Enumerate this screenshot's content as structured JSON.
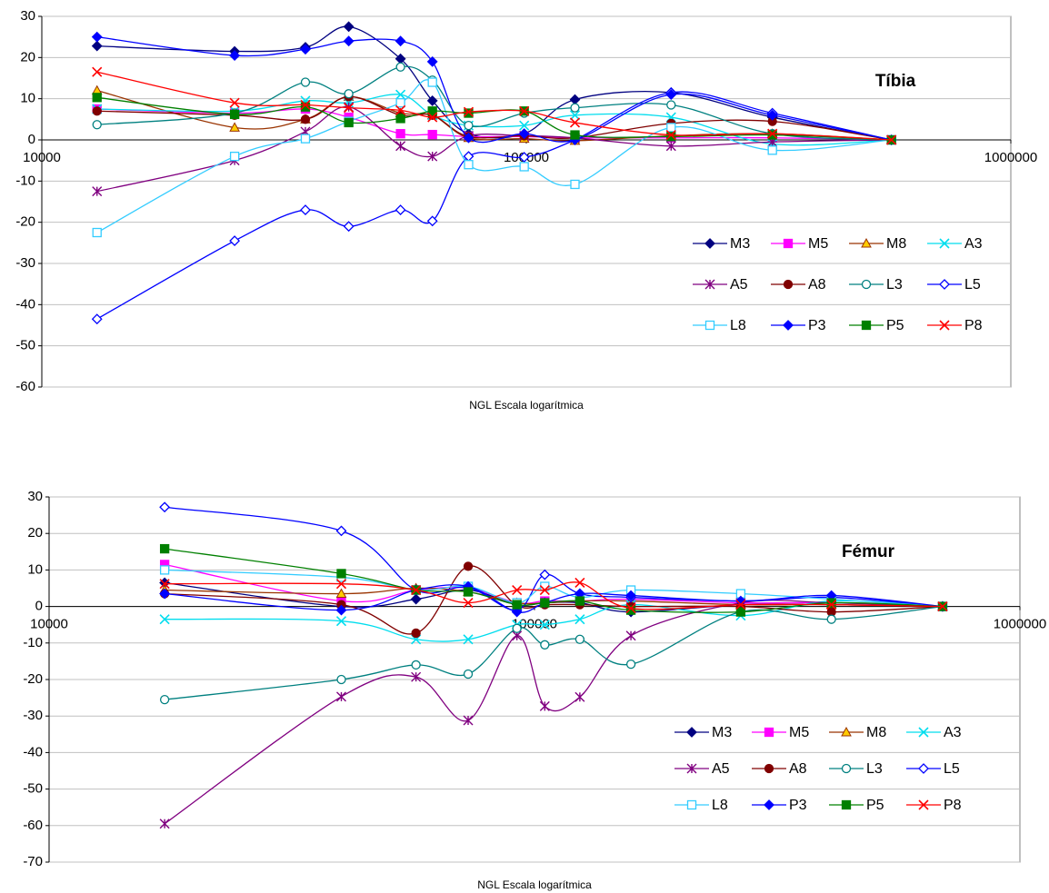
{
  "chart_data": [
    {
      "type": "line",
      "title": "Tíbia",
      "x_label": "NGL Escala logarítmica",
      "log_x": true,
      "grid": true,
      "legend": "lower right",
      "xlim": [
        10000,
        1000000
      ],
      "xticks": [
        10000,
        100000,
        1000000
      ],
      "ylim": [
        -60,
        30
      ],
      "yticks": [
        -60,
        -50,
        -40,
        -30,
        -20,
        -10,
        0,
        10,
        20,
        30
      ],
      "x": [
        13000,
        25000,
        35000,
        43000,
        55000,
        64000,
        76000,
        99000,
        126000,
        199000,
        322000,
        567000
      ],
      "series": [
        {
          "name": "M3",
          "color": "#000080",
          "marker": "diamond",
          "values": [
            22.8,
            21.5,
            22.5,
            27.5,
            19.7,
            9.5,
            1.5,
            1.5,
            9.8,
            11.5,
            5.5,
            0
          ]
        },
        {
          "name": "M5",
          "color": "#FF00FF",
          "marker": "square",
          "values": [
            7.5,
            6.5,
            7.5,
            5.5,
            1.5,
            1.3,
            0.8,
            0.8,
            0.5,
            0.5,
            0.5,
            0
          ]
        },
        {
          "name": "M8",
          "color": "#993300",
          "marker": "triangle",
          "values": [
            12,
            3,
            5,
            10.5,
            6.5,
            6,
            0.5,
            0.3,
            -0.2,
            1,
            1.5,
            0
          ]
        },
        {
          "name": "A3",
          "color": "#00DDEE",
          "marker": "x",
          "values": [
            7.5,
            7,
            9.5,
            9,
            11,
            6,
            3.5,
            3.5,
            6,
            5.5,
            -1,
            0
          ]
        },
        {
          "name": "A5",
          "color": "#800080",
          "marker": "star",
          "values": [
            -12.5,
            -5,
            2,
            8,
            -1.5,
            -4,
            1,
            1,
            0.5,
            -1.5,
            -0.5,
            0
          ]
        },
        {
          "name": "A8",
          "color": "#800000",
          "marker": "circle",
          "values": [
            7,
            6,
            5,
            10.5,
            6,
            6,
            0.8,
            1,
            0.5,
            4,
            4.5,
            0
          ]
        },
        {
          "name": "L3",
          "color": "#008080",
          "marker": "open-circle",
          "values": [
            3.7,
            6.5,
            14,
            11.2,
            17.7,
            14.5,
            3.5,
            6.5,
            7.8,
            8.5,
            1.5,
            0
          ]
        },
        {
          "name": "L5",
          "color": "#0000FF",
          "marker": "open-diamond",
          "values": [
            -43.5,
            -24.5,
            -17,
            -21,
            -17,
            -19.7,
            -4,
            -4.2,
            0,
            11.5,
            6.5,
            0
          ]
        },
        {
          "name": "L8",
          "color": "#33CCFF",
          "marker": "open-square",
          "values": [
            -22.5,
            -4,
            0.3,
            4.5,
            9,
            14,
            -6,
            -6.5,
            -10.8,
            3,
            -2.5,
            0
          ]
        },
        {
          "name": "P3",
          "color": "#0000FF",
          "marker": "diamond",
          "values": [
            25,
            20.5,
            22,
            24,
            24,
            19,
            0.5,
            1.5,
            0,
            11,
            6,
            0
          ]
        },
        {
          "name": "P5",
          "color": "#008000",
          "marker": "square",
          "values": [
            10.3,
            6.2,
            8,
            4.2,
            5.2,
            7,
            6.5,
            7,
            1.2,
            0.8,
            1.2,
            0
          ]
        },
        {
          "name": "P8",
          "color": "#FF0000",
          "marker": "x",
          "values": [
            16.5,
            9,
            8.5,
            7.8,
            7.2,
            5.5,
            6.8,
            7,
            4.2,
            1.2,
            1.5,
            0
          ]
        }
      ]
    },
    {
      "type": "line",
      "title": "Fémur",
      "x_label": "NGL Escala logarítmica",
      "log_x": true,
      "grid": true,
      "legend": "lower right",
      "xlim": [
        10000,
        1000000
      ],
      "xticks": [
        10000,
        100000,
        1000000
      ],
      "ylim": [
        -70,
        30
      ],
      "yticks": [
        -70,
        -60,
        -50,
        -40,
        -30,
        -20,
        -10,
        0,
        10,
        20,
        30
      ],
      "x": [
        17300,
        40000,
        57000,
        73000,
        92000,
        105000,
        124000,
        158000,
        266000,
        409000,
        693000
      ],
      "series": [
        {
          "name": "M3",
          "color": "#000080",
          "marker": "diamond",
          "values": [
            6.5,
            0,
            2,
            4.5,
            0.5,
            1,
            1,
            -1.5,
            0.5,
            0.5,
            0
          ]
        },
        {
          "name": "M5",
          "color": "#FF00FF",
          "marker": "square",
          "values": [
            11.5,
            1.5,
            4.5,
            5,
            1,
            1.5,
            1.5,
            2,
            1,
            1,
            0
          ]
        },
        {
          "name": "M8",
          "color": "#993300",
          "marker": "triangle",
          "values": [
            4.5,
            3.5,
            5,
            4,
            1,
            1,
            1.5,
            1.5,
            0.5,
            0.5,
            0
          ]
        },
        {
          "name": "A3",
          "color": "#00DDEE",
          "marker": "x",
          "values": [
            -3.5,
            -4,
            -9,
            -9,
            -5,
            -5,
            -3.5,
            0.5,
            -2.5,
            1.5,
            0
          ]
        },
        {
          "name": "A5",
          "color": "#800080",
          "marker": "star",
          "values": [
            -59.5,
            -24.7,
            -19.3,
            -31.2,
            -8,
            -27.3,
            -24.8,
            -8,
            1,
            1,
            0
          ]
        },
        {
          "name": "A8",
          "color": "#800000",
          "marker": "circle",
          "values": [
            3.5,
            0.5,
            -7.3,
            11,
            0.3,
            0.5,
            0.5,
            0,
            0,
            -1.5,
            0
          ]
        },
        {
          "name": "L3",
          "color": "#008080",
          "marker": "open-circle",
          "values": [
            -25.5,
            -20,
            -16,
            -18.5,
            -6,
            -10.5,
            -9,
            -15.8,
            -1.5,
            -3.5,
            0
          ]
        },
        {
          "name": "L5",
          "color": "#0000FF",
          "marker": "open-diamond",
          "values": [
            27.2,
            20.7,
            4.5,
            5.2,
            -1,
            8.7,
            3.5,
            2.5,
            1.5,
            2.5,
            0
          ]
        },
        {
          "name": "L8",
          "color": "#33CCFF",
          "marker": "open-square",
          "values": [
            10,
            8,
            4.5,
            5.5,
            1,
            5.5,
            2.5,
            4.5,
            3.5,
            2,
            0
          ]
        },
        {
          "name": "P3",
          "color": "#0000FF",
          "marker": "diamond",
          "values": [
            3.5,
            -1,
            4.5,
            5.5,
            -1.5,
            1,
            3.5,
            3,
            1.5,
            3,
            0
          ]
        },
        {
          "name": "P5",
          "color": "#008000",
          "marker": "square",
          "values": [
            15.8,
            9,
            4.5,
            4,
            0.5,
            1,
            1.5,
            -1,
            -1.5,
            1,
            0
          ]
        },
        {
          "name": "P8",
          "color": "#FF0000",
          "marker": "x",
          "values": [
            6.2,
            6.2,
            4.5,
            1,
            4.5,
            4.5,
            6.5,
            -0.5,
            0.5,
            0.5,
            0
          ]
        }
      ]
    }
  ]
}
